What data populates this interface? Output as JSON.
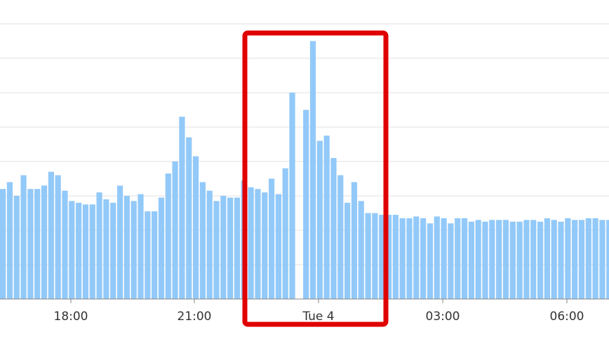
{
  "chart_data": {
    "type": "bar",
    "title": "",
    "xlabel": "",
    "ylabel": "",
    "grid": true,
    "legend": "none",
    "ylim": [
      0,
      8
    ],
    "x_tick_labels": [
      "18:00",
      "21:00",
      "Tue 4",
      "03:00",
      "06:00"
    ],
    "values": [
      3.2,
      3.4,
      3.0,
      3.6,
      3.2,
      3.2,
      3.3,
      3.7,
      3.6,
      3.15,
      2.85,
      2.8,
      2.75,
      2.75,
      3.1,
      2.9,
      2.8,
      3.3,
      3.0,
      2.85,
      3.05,
      2.55,
      2.55,
      2.95,
      3.65,
      4.0,
      5.3,
      4.7,
      4.15,
      3.4,
      3.15,
      2.85,
      3.0,
      2.95,
      2.95,
      3.45,
      3.25,
      3.2,
      3.1,
      3.5,
      3.05,
      3.8,
      6.0,
      0,
      5.5,
      7.5,
      4.6,
      4.75,
      4.1,
      3.6,
      2.8,
      3.4,
      2.85,
      2.5,
      2.5,
      2.45,
      2.45,
      2.45,
      2.35,
      2.35,
      2.4,
      2.35,
      2.2,
      2.4,
      2.35,
      2.2,
      2.35,
      2.35,
      2.25,
      2.3,
      2.25,
      2.3,
      2.3,
      2.3,
      2.25,
      2.25,
      2.3,
      2.3,
      2.25,
      2.35,
      2.3,
      2.25,
      2.35,
      2.3,
      2.3,
      2.35,
      2.35,
      2.3,
      2.3,
      2.4,
      2.35,
      2.3,
      2.4
    ],
    "colors": {
      "bar": "#92c9f9",
      "grid": "#e2e2e2",
      "axis": "#888888",
      "highlight": "#e00000"
    }
  }
}
